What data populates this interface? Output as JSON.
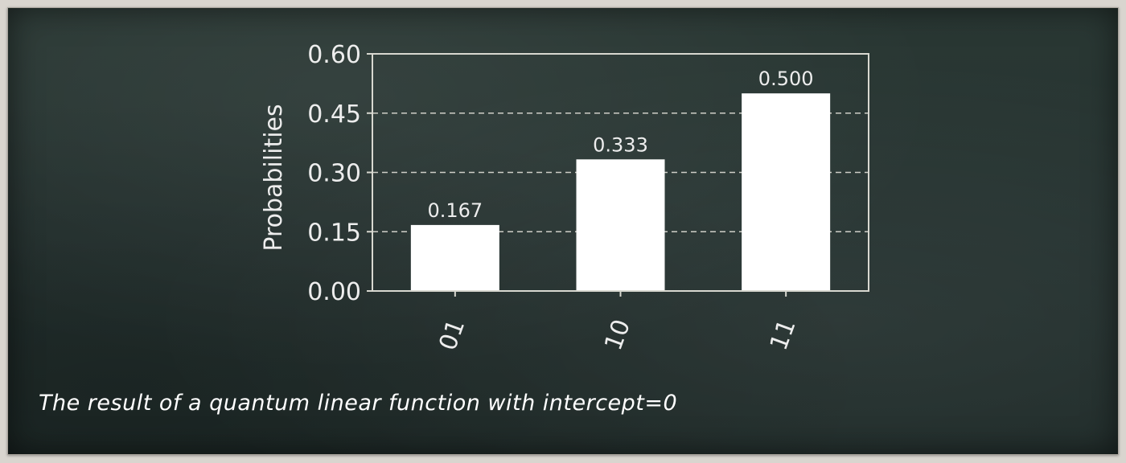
{
  "caption": "The result of a quantum linear function with intercept=0",
  "colors": {
    "board": "#253230",
    "bar": "#ffffff",
    "axis": "#d8d8d0",
    "grid": "#cfcfc8",
    "text": "#ededed"
  },
  "chart_data": {
    "type": "bar",
    "categories": [
      "01",
      "10",
      "11"
    ],
    "values": [
      0.167,
      0.333,
      0.5
    ],
    "value_labels": [
      "0.167",
      "0.333",
      "0.500"
    ],
    "ylabel": "Probabilities",
    "xlabel": "",
    "ylim": [
      0,
      0.6
    ],
    "yticks": [
      0.0,
      0.15,
      0.3,
      0.45,
      0.6
    ],
    "ytick_labels": [
      "0.00",
      "0.15",
      "0.30",
      "0.45",
      "0.60"
    ],
    "grid": "y-dashed",
    "legend": "none"
  }
}
